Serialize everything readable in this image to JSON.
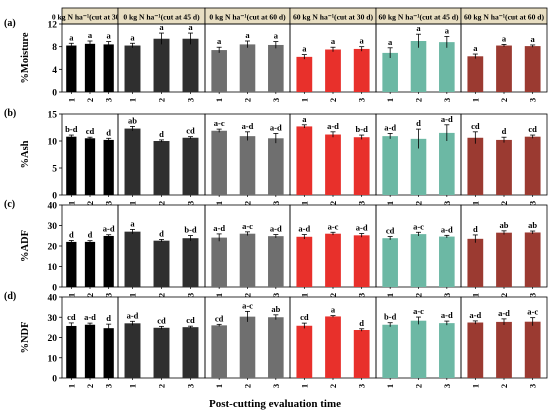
{
  "figure": {
    "xlabel": "Post-cutting evaluation time",
    "panel_headers": [
      "0 kg N ha⁻¹(cut at 30 d)",
      "0 kg N ha⁻¹(cut at 45 d)",
      "0 kg N ha⁻¹(cut at 60 d)",
      "60 kg N ha⁻¹(cut at 30 d)",
      "60 kg N ha⁻¹(cut at 45 d)",
      "60 kg N ha⁻¹(cut at 60 d)"
    ],
    "header_color": "#e8dec2",
    "colors": [
      "#000000",
      "#2f2f2f",
      "#6f6f6f",
      "#e8302b",
      "#6cb8a4",
      "#9b3a31"
    ]
  },
  "chart_data": [
    {
      "type": "bar",
      "tag": "(a)",
      "ylabel": "%Moisture",
      "ylim": [
        0,
        12
      ],
      "yticks": [
        0,
        4,
        8,
        12
      ],
      "categories": [
        "1",
        "2",
        "3"
      ],
      "series": [
        {
          "values": [
            8.2,
            8.5,
            8.4
          ],
          "errors": [
            0.4,
            0.5,
            0.5
          ],
          "letters": [
            "a",
            "a",
            "a"
          ]
        },
        {
          "values": [
            8.2,
            9.4,
            9.4
          ],
          "errors": [
            0.4,
            1.0,
            1.0
          ],
          "letters": [
            "a",
            "a",
            "a"
          ]
        },
        {
          "values": [
            7.4,
            8.4,
            8.3
          ],
          "errors": [
            0.5,
            0.6,
            0.6
          ],
          "letters": [
            "a",
            "a",
            "a"
          ]
        },
        {
          "values": [
            6.2,
            7.5,
            7.6
          ],
          "errors": [
            0.4,
            0.4,
            0.4
          ],
          "letters": [
            "a",
            "a",
            "a"
          ]
        },
        {
          "values": [
            6.9,
            9.0,
            8.8
          ],
          "errors": [
            0.9,
            1.2,
            1.0
          ],
          "letters": [
            "a",
            "a",
            "a"
          ]
        },
        {
          "values": [
            6.3,
            8.2,
            8.1
          ],
          "errors": [
            0.4,
            0.2,
            0.2
          ],
          "letters": [
            "a",
            "a",
            "a"
          ]
        }
      ]
    },
    {
      "type": "bar",
      "tag": "(b)",
      "ylabel": "%Ash",
      "ylim": [
        0,
        15
      ],
      "yticks": [
        0,
        5,
        10,
        15
      ],
      "categories": [
        "1",
        "2",
        "3"
      ],
      "series": [
        {
          "values": [
            10.8,
            10.5,
            10.2
          ],
          "errors": [
            0.3,
            0.2,
            0.3
          ],
          "letters": [
            "b-d",
            "cd",
            "d"
          ]
        },
        {
          "values": [
            12.3,
            10.0,
            10.6
          ],
          "errors": [
            0.4,
            0.2,
            0.2
          ],
          "letters": [
            "ab",
            "d",
            "cd"
          ]
        },
        {
          "values": [
            11.9,
            10.9,
            10.5
          ],
          "errors": [
            0.3,
            0.8,
            0.9
          ],
          "letters": [
            "a-c",
            "a-d",
            "a-d"
          ]
        },
        {
          "values": [
            12.7,
            11.2,
            10.7
          ],
          "errors": [
            0.3,
            0.5,
            0.4
          ],
          "letters": [
            "a",
            "a-d",
            "b-d"
          ]
        },
        {
          "values": [
            10.9,
            10.4,
            11.5
          ],
          "errors": [
            0.5,
            1.8,
            1.5
          ],
          "letters": [
            "a-d",
            "d",
            "a-d"
          ]
        },
        {
          "values": [
            10.6,
            10.2,
            10.8
          ],
          "errors": [
            1.1,
            0.5,
            0.3
          ],
          "letters": [
            "cd",
            "d",
            "cd"
          ]
        }
      ]
    },
    {
      "type": "bar",
      "tag": "(c)",
      "ylabel": "%ADF",
      "ylim": [
        0,
        40
      ],
      "yticks": [
        0,
        10,
        20,
        30,
        40
      ],
      "categories": [
        "1",
        "2",
        "3"
      ],
      "series": [
        {
          "values": [
            22.0,
            22.0,
            24.9
          ],
          "errors": [
            0.7,
            0.6,
            0.6
          ],
          "letters": [
            "d",
            "d",
            "a-d"
          ]
        },
        {
          "values": [
            27.0,
            22.6,
            23.8
          ],
          "errors": [
            1.1,
            0.6,
            1.3
          ],
          "letters": [
            "a",
            "d",
            "b-d"
          ]
        },
        {
          "values": [
            24.1,
            26.0,
            24.8
          ],
          "errors": [
            1.8,
            0.9,
            0.8
          ],
          "letters": [
            "a-d",
            "a-c",
            "a-d"
          ]
        },
        {
          "values": [
            24.5,
            26.0,
            25.2
          ],
          "errors": [
            1.1,
            0.7,
            0.9
          ],
          "letters": [
            "a-d",
            "a-c",
            "a-d"
          ]
        },
        {
          "values": [
            23.8,
            25.8,
            24.6
          ],
          "errors": [
            0.8,
            0.9,
            0.6
          ],
          "letters": [
            "cd",
            "a-c",
            "a-d"
          ]
        },
        {
          "values": [
            23.5,
            26.5,
            26.6
          ],
          "errors": [
            1.9,
            0.9,
            0.7
          ],
          "letters": [
            "d",
            "ab",
            "ab"
          ]
        }
      ]
    },
    {
      "type": "bar",
      "tag": "(d)",
      "ylabel": "%NDF",
      "ylim": [
        0,
        40
      ],
      "yticks": [
        0,
        10,
        20,
        30,
        40
      ],
      "categories": [
        "1",
        "2",
        "3"
      ],
      "series": [
        {
          "values": [
            25.7,
            26.3,
            24.6
          ],
          "errors": [
            1.5,
            0.8,
            2.0
          ],
          "letters": [
            "cd",
            "a-d",
            "d"
          ]
        },
        {
          "values": [
            27.0,
            24.8,
            25.1
          ],
          "errors": [
            1.0,
            0.7,
            0.5
          ],
          "letters": [
            "a-d",
            "cd",
            "cd"
          ]
        },
        {
          "values": [
            26.0,
            30.3,
            30.0
          ],
          "errors": [
            0.5,
            2.6,
            1.2
          ],
          "letters": [
            "cd",
            "a-c",
            "ab"
          ]
        },
        {
          "values": [
            25.8,
            30.4,
            23.7
          ],
          "errors": [
            1.3,
            0.4,
            0.6
          ],
          "letters": [
            "cd",
            "a",
            "d"
          ]
        },
        {
          "values": [
            26.3,
            28.3,
            27.1
          ],
          "errors": [
            1.0,
            1.8,
            1.0
          ],
          "letters": [
            "b-d",
            "a-c",
            "a-d"
          ]
        },
        {
          "values": [
            27.4,
            27.7,
            27.8
          ],
          "errors": [
            0.8,
            1.5,
            2.0
          ],
          "letters": [
            "a-d",
            "a-d",
            "a-c"
          ]
        }
      ]
    }
  ]
}
